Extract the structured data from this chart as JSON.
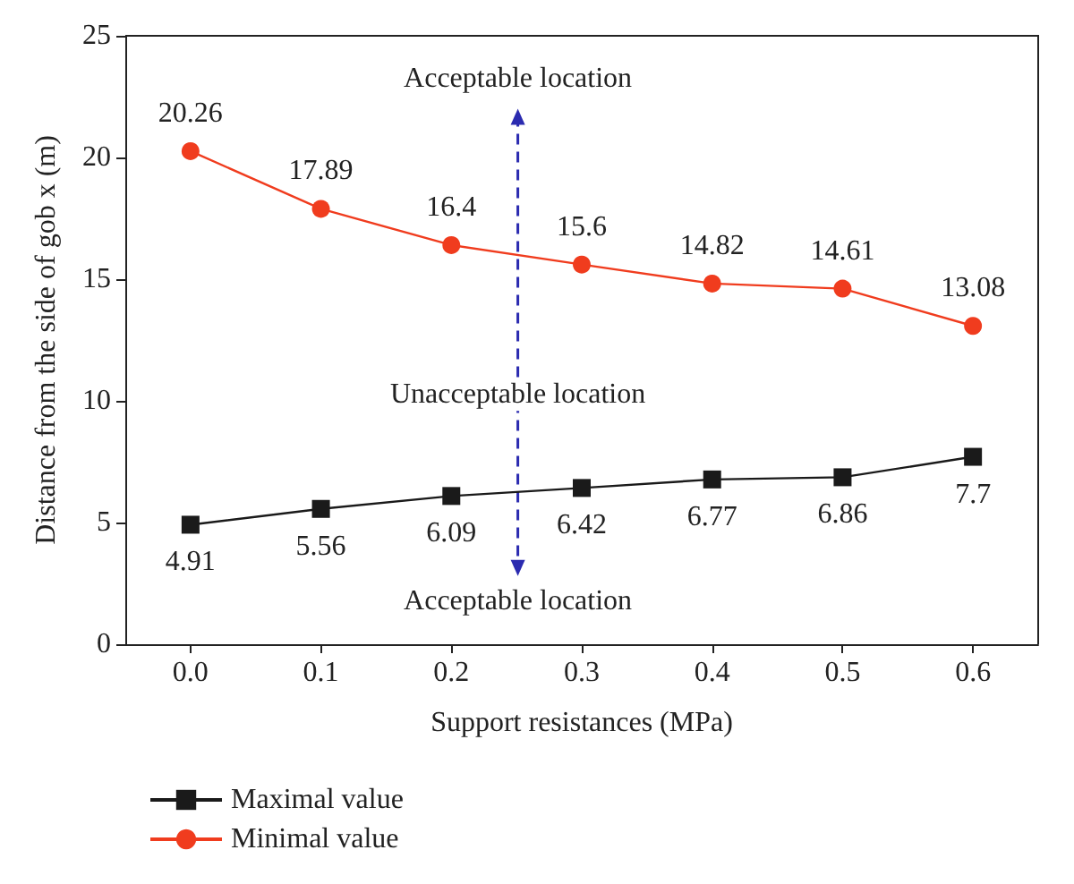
{
  "chart_data": {
    "type": "line",
    "xlabel": "Support resistances (MPa)",
    "ylabel": "Distance from the side of gob x (m)",
    "x": [
      0,
      0.1,
      0.2,
      0.3,
      0.4,
      0.5,
      0.6
    ],
    "xlim": [
      -0.05,
      0.65
    ],
    "xticks": [
      {
        "value": 0,
        "label": "0.0"
      },
      {
        "value": 0.1,
        "label": "0.1"
      },
      {
        "value": 0.2,
        "label": "0.2"
      },
      {
        "value": 0.3,
        "label": "0.3"
      },
      {
        "value": 0.4,
        "label": "0.4"
      },
      {
        "value": 0.5,
        "label": "0.5"
      },
      {
        "value": 0.6,
        "label": "0.6"
      }
    ],
    "ylim": [
      0,
      25
    ],
    "yticks": [
      0,
      5,
      10,
      15,
      20,
      25
    ],
    "series": [
      {
        "name": "Maximal value",
        "color": "#1a1a1a",
        "marker": "square",
        "values": [
          4.91,
          5.56,
          6.09,
          6.42,
          6.77,
          6.86,
          7.7
        ]
      },
      {
        "name": "Minimal value",
        "color": "#f03c1e",
        "marker": "circle",
        "values": [
          20.26,
          17.89,
          16.4,
          15.6,
          14.82,
          14.61,
          13.08
        ]
      }
    ],
    "data_labels": true,
    "grid": false,
    "legend": "bottom left",
    "annotations": [
      "Acceptable location",
      "Unacceptable location",
      "Acceptable location"
    ]
  }
}
